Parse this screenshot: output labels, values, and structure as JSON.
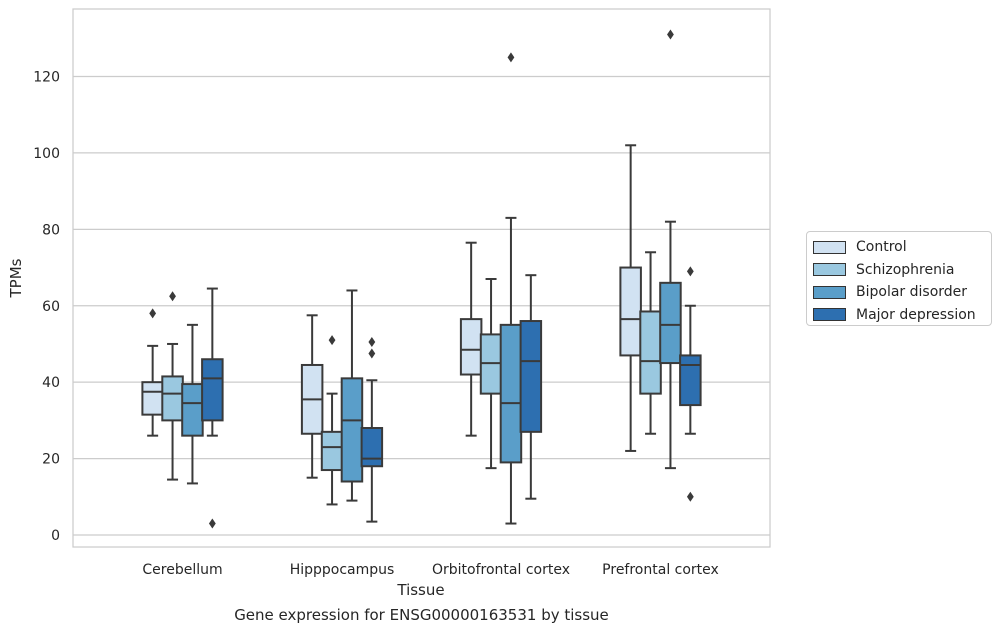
{
  "chart_data": {
    "type": "box",
    "xlabel": "Tissue",
    "ylabel": "TPMs",
    "caption": "Gene expression for ENSG00000163531 by tissue",
    "ylim": [
      -3,
      138
    ],
    "yticks": [
      0,
      20,
      40,
      60,
      80,
      100,
      120
    ],
    "grid": true,
    "legend_position": "right",
    "categories": [
      "Cerebellum",
      "Hipppocampus",
      "Orbitofrontal cortex",
      "Prefrontal cortex"
    ],
    "series": [
      {
        "name": "Control",
        "color": "#d1e2f2",
        "boxes": [
          {
            "whislo": 26,
            "q1": 31.5,
            "med": 37.5,
            "q3": 40,
            "whishi": 49.5,
            "fliers": [
              58
            ]
          },
          {
            "whislo": 15,
            "q1": 26.5,
            "med": 35.5,
            "q3": 44.5,
            "whishi": 57.5,
            "fliers": []
          },
          {
            "whislo": 26,
            "q1": 42,
            "med": 48.5,
            "q3": 56.5,
            "whishi": 76.5,
            "fliers": []
          },
          {
            "whislo": 22,
            "q1": 47,
            "med": 56.5,
            "q3": 70,
            "whishi": 102,
            "fliers": []
          }
        ]
      },
      {
        "name": "Schizophrenia",
        "color": "#9ac8e0",
        "boxes": [
          {
            "whislo": 14.5,
            "q1": 30,
            "med": 37,
            "q3": 41.5,
            "whishi": 50,
            "fliers": [
              62.5
            ]
          },
          {
            "whislo": 8,
            "q1": 17,
            "med": 23,
            "q3": 27,
            "whishi": 37,
            "fliers": [
              51
            ]
          },
          {
            "whislo": 17.5,
            "q1": 37,
            "med": 45,
            "q3": 52.5,
            "whishi": 67,
            "fliers": []
          },
          {
            "whislo": 26.5,
            "q1": 37,
            "med": 45.5,
            "q3": 58.5,
            "whishi": 74,
            "fliers": []
          }
        ]
      },
      {
        "name": "Bipolar disorder",
        "color": "#5a9ec9",
        "boxes": [
          {
            "whislo": 13.5,
            "q1": 26,
            "med": 34.5,
            "q3": 39.5,
            "whishi": 55,
            "fliers": []
          },
          {
            "whislo": 9,
            "q1": 14,
            "med": 30,
            "q3": 41,
            "whishi": 64,
            "fliers": []
          },
          {
            "whislo": 3,
            "q1": 19,
            "med": 34.5,
            "q3": 55,
            "whishi": 83,
            "fliers": [
              125
            ]
          },
          {
            "whislo": 17.5,
            "q1": 45,
            "med": 55,
            "q3": 66,
            "whishi": 82,
            "fliers": [
              131
            ]
          }
        ]
      },
      {
        "name": "Major depression",
        "color": "#2d6fb0",
        "boxes": [
          {
            "whislo": 26,
            "q1": 30,
            "med": 41,
            "q3": 46,
            "whishi": 64.5,
            "fliers": [
              3
            ]
          },
          {
            "whislo": 3.5,
            "q1": 18,
            "med": 20,
            "q3": 28,
            "whishi": 40.5,
            "fliers": [
              47.5,
              50.5
            ]
          },
          {
            "whislo": 9.5,
            "q1": 27,
            "med": 45.5,
            "q3": 56,
            "whishi": 68,
            "fliers": []
          },
          {
            "whislo": 26.5,
            "q1": 34,
            "med": 44.5,
            "q3": 47,
            "whishi": 60,
            "fliers": [
              69,
              10
            ]
          }
        ]
      }
    ]
  }
}
